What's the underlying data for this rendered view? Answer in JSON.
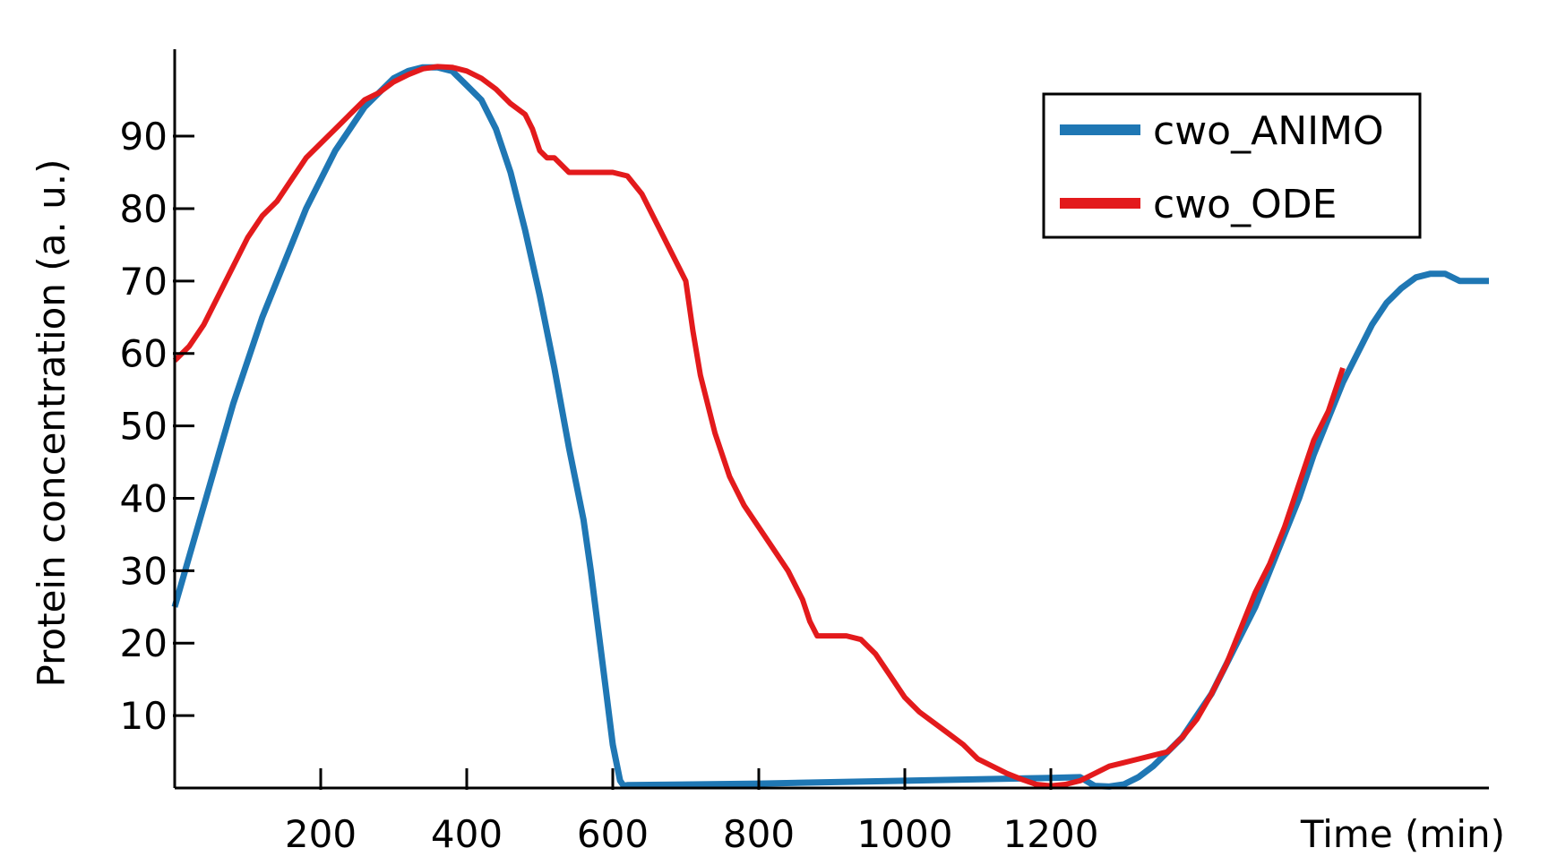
{
  "chart_data": {
    "type": "line",
    "title": "",
    "xlabel": "Time (min)",
    "ylabel": "Protein concentration (a. u.)",
    "xlim": [
      0,
      1800
    ],
    "ylim": [
      0,
      102
    ],
    "x_ticks": [
      200,
      400,
      600,
      800,
      1000,
      1200
    ],
    "y_ticks": [
      10,
      20,
      30,
      40,
      50,
      60,
      70,
      80,
      90
    ],
    "grid": false,
    "legend_position": "top-right",
    "series": [
      {
        "name": "cwo_ANIMO",
        "color": "#1f77b4",
        "points": [
          [
            0,
            25
          ],
          [
            20,
            32
          ],
          [
            40,
            39
          ],
          [
            60,
            46
          ],
          [
            80,
            53
          ],
          [
            100,
            59
          ],
          [
            120,
            65
          ],
          [
            140,
            70
          ],
          [
            160,
            75
          ],
          [
            180,
            80
          ],
          [
            200,
            84
          ],
          [
            220,
            88
          ],
          [
            240,
            91
          ],
          [
            260,
            94
          ],
          [
            280,
            96
          ],
          [
            300,
            98
          ],
          [
            320,
            99
          ],
          [
            340,
            99.5
          ],
          [
            360,
            99.5
          ],
          [
            380,
            99
          ],
          [
            400,
            97
          ],
          [
            420,
            95
          ],
          [
            440,
            91
          ],
          [
            460,
            85
          ],
          [
            480,
            77
          ],
          [
            500,
            68
          ],
          [
            520,
            58
          ],
          [
            540,
            47
          ],
          [
            560,
            37
          ],
          [
            570,
            30
          ],
          [
            580,
            22
          ],
          [
            590,
            14
          ],
          [
            600,
            6
          ],
          [
            610,
            1
          ],
          [
            615,
            0.3
          ],
          [
            620,
            0.4
          ],
          [
            800,
            0.6
          ],
          [
            1000,
            1.0
          ],
          [
            1200,
            1.4
          ],
          [
            1240,
            1.5
          ],
          [
            1260,
            0.3
          ],
          [
            1280,
            0.2
          ],
          [
            1300,
            0.5
          ],
          [
            1320,
            1.5
          ],
          [
            1340,
            3
          ],
          [
            1360,
            5
          ],
          [
            1380,
            7
          ],
          [
            1400,
            10
          ],
          [
            1420,
            13
          ],
          [
            1440,
            17
          ],
          [
            1460,
            21
          ],
          [
            1480,
            25
          ],
          [
            1500,
            30
          ],
          [
            1520,
            35
          ],
          [
            1540,
            40
          ],
          [
            1560,
            46
          ],
          [
            1580,
            51
          ],
          [
            1600,
            56
          ],
          [
            1620,
            60
          ],
          [
            1640,
            64
          ],
          [
            1660,
            67
          ],
          [
            1680,
            69
          ],
          [
            1700,
            70.5
          ],
          [
            1720,
            71
          ],
          [
            1740,
            71
          ],
          [
            1760,
            70
          ],
          [
            1800,
            70
          ]
        ]
      },
      {
        "name": "cwo_ODE",
        "color": "#e31a1c",
        "points": [
          [
            0,
            59
          ],
          [
            20,
            61
          ],
          [
            40,
            64
          ],
          [
            60,
            68
          ],
          [
            80,
            72
          ],
          [
            100,
            76
          ],
          [
            120,
            79
          ],
          [
            140,
            81
          ],
          [
            160,
            84
          ],
          [
            180,
            87
          ],
          [
            200,
            89
          ],
          [
            220,
            91
          ],
          [
            240,
            93
          ],
          [
            260,
            95
          ],
          [
            280,
            96
          ],
          [
            300,
            97.5
          ],
          [
            320,
            98.5
          ],
          [
            340,
            99.3
          ],
          [
            360,
            99.6
          ],
          [
            380,
            99.5
          ],
          [
            400,
            99
          ],
          [
            420,
            98
          ],
          [
            440,
            96.5
          ],
          [
            460,
            94.5
          ],
          [
            480,
            93
          ],
          [
            490,
            91
          ],
          [
            500,
            88
          ],
          [
            510,
            87
          ],
          [
            520,
            87
          ],
          [
            540,
            85
          ],
          [
            560,
            85
          ],
          [
            600,
            85
          ],
          [
            620,
            84.5
          ],
          [
            640,
            82
          ],
          [
            660,
            78
          ],
          [
            680,
            74
          ],
          [
            700,
            70
          ],
          [
            710,
            63
          ],
          [
            720,
            57
          ],
          [
            740,
            49
          ],
          [
            760,
            43
          ],
          [
            780,
            39
          ],
          [
            800,
            36
          ],
          [
            820,
            33
          ],
          [
            840,
            30
          ],
          [
            860,
            26
          ],
          [
            870,
            23
          ],
          [
            880,
            21
          ],
          [
            900,
            21
          ],
          [
            920,
            21
          ],
          [
            940,
            20.5
          ],
          [
            960,
            18.5
          ],
          [
            980,
            15.5
          ],
          [
            1000,
            12.5
          ],
          [
            1020,
            10.5
          ],
          [
            1040,
            9
          ],
          [
            1060,
            7.5
          ],
          [
            1080,
            6
          ],
          [
            1100,
            4
          ],
          [
            1120,
            3
          ],
          [
            1140,
            2
          ],
          [
            1160,
            1.2
          ],
          [
            1180,
            0.5
          ],
          [
            1200,
            0.3
          ],
          [
            1220,
            0.5
          ],
          [
            1240,
            1
          ],
          [
            1260,
            2
          ],
          [
            1280,
            3
          ],
          [
            1300,
            3.5
          ],
          [
            1320,
            4
          ],
          [
            1340,
            4.5
          ],
          [
            1360,
            5
          ],
          [
            1380,
            7
          ],
          [
            1400,
            9.5
          ],
          [
            1420,
            13
          ],
          [
            1440,
            17
          ],
          [
            1460,
            22
          ],
          [
            1480,
            27
          ],
          [
            1500,
            31
          ],
          [
            1520,
            36
          ],
          [
            1540,
            42
          ],
          [
            1560,
            48
          ],
          [
            1580,
            52
          ],
          [
            1600,
            58
          ]
        ]
      }
    ]
  }
}
